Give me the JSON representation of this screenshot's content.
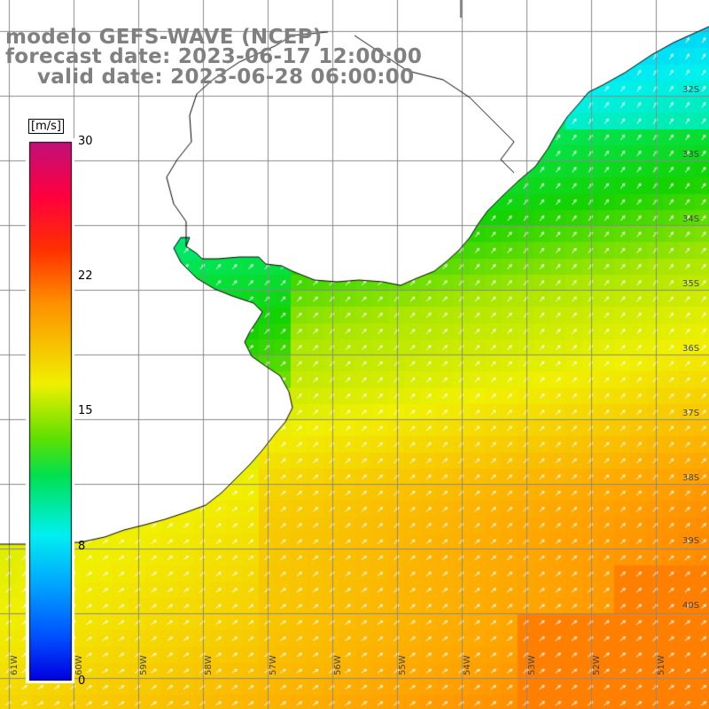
{
  "title": {
    "line1": "modelo GEFS-WAVE (NCEP)",
    "line2": "forecast date: 2023-06-17 12:00:00",
    "line3": "valid date: 2023-06-28 06:00:00"
  },
  "colorbar": {
    "unit": "[m/s]",
    "ticks": [
      "30",
      "22",
      "15",
      "8",
      "0"
    ],
    "tick_values": [
      30,
      22,
      15,
      8,
      0
    ],
    "range": [
      0,
      30
    ]
  },
  "map": {
    "lat_labels": [
      "32S",
      "33S",
      "34S",
      "35S",
      "36S",
      "37S",
      "38S",
      "39S",
      "40S"
    ],
    "lon_labels": [
      "61W",
      "60W",
      "59W",
      "58W",
      "57W",
      "56W",
      "55W",
      "54W",
      "53W",
      "52W",
      "51W"
    ],
    "lat_range": [
      -41,
      -31
    ],
    "lon_range": [
      -61,
      -50
    ],
    "region": "Río de la Plata / Uruguay / southern Brazil coast",
    "grid": true,
    "arrow_direction": "toward northeast"
  },
  "colors": {
    "title_gray": "#808080",
    "coast_line": "#000000",
    "grid_line": "#7a7a7a",
    "arrow": "#ffffff"
  }
}
